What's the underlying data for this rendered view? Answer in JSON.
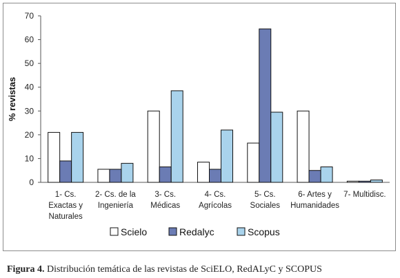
{
  "chart_data": {
    "type": "bar",
    "ylabel": "% revistas",
    "xlabel": "",
    "ylim": [
      0,
      70
    ],
    "yticks": [
      0,
      10,
      20,
      30,
      40,
      50,
      60,
      70
    ],
    "grid": false,
    "legend_position": "bottom",
    "categories": [
      [
        "1- Cs.",
        "Exactas y",
        "Naturales"
      ],
      [
        "2- Cs. de la",
        "Ingeniería"
      ],
      [
        "3- Cs.",
        "Médicas"
      ],
      [
        "4- Cs.",
        "Agrícolas"
      ],
      [
        "5- Cs.",
        "Sociales"
      ],
      [
        "6- Artes y",
        "Humanidades"
      ],
      [
        "7- Multidisc."
      ]
    ],
    "series": [
      {
        "name": "Scielo",
        "color": "#ffffff",
        "values": [
          21.0,
          5.5,
          30.0,
          8.5,
          16.5,
          30.0,
          0.5
        ]
      },
      {
        "name": "Redalyc",
        "color": "#6b7cb4",
        "values": [
          9.0,
          5.5,
          6.5,
          5.5,
          64.5,
          5.0,
          0.5
        ]
      },
      {
        "name": "Scopus",
        "color": "#a9d3ec",
        "values": [
          21.0,
          8.0,
          38.5,
          22.0,
          29.5,
          6.5,
          1.0
        ]
      }
    ]
  },
  "caption": {
    "label": "Figura 4.",
    "text": " Distribución temática de las revistas de SciELO, RedALyC y SCOPUS"
  }
}
